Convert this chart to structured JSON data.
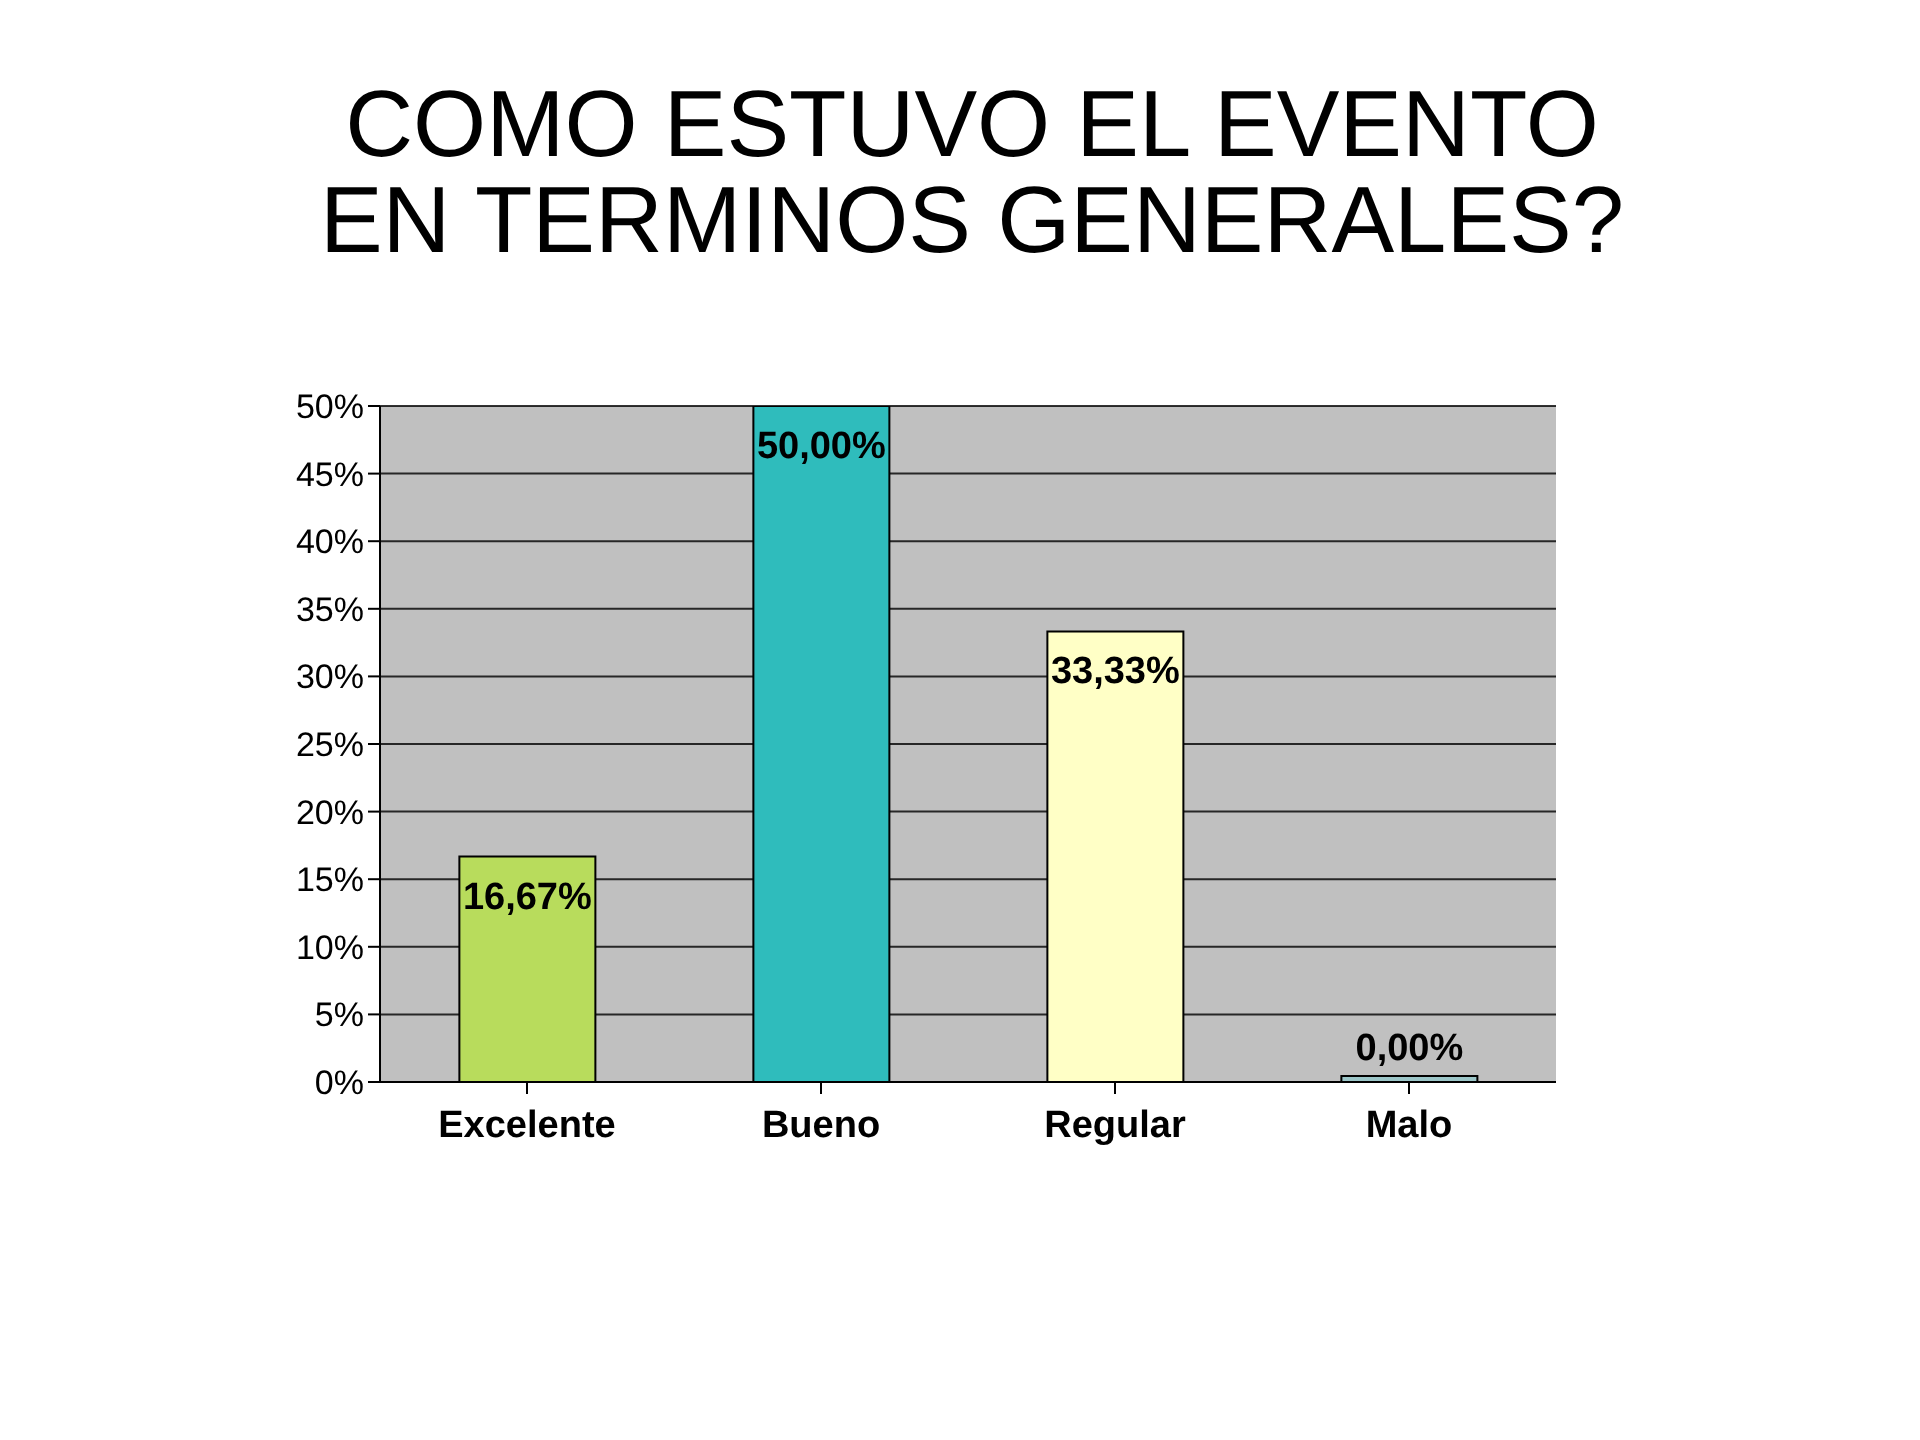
{
  "chart_data": {
    "type": "bar",
    "title": "COMO ESTUVO EL EVENTO\nEN TERMINOS GENERALES?",
    "categories": [
      "Excelente",
      "Bueno",
      "Regular",
      "Malo"
    ],
    "values": [
      16.67,
      50.0,
      33.33,
      0.0
    ],
    "colors": [
      "#b8dc5c",
      "#2fbcbc",
      "#ffffc6",
      "#9cc6c8"
    ],
    "value_labels": [
      "16,67%",
      "50,00%",
      "33,33%",
      "0,00%"
    ],
    "ylim": [
      0,
      50
    ],
    "yticks": [
      {
        "value": 0,
        "label": "0%"
      },
      {
        "value": 5,
        "label": "5%"
      },
      {
        "value": 10,
        "label": "10%"
      },
      {
        "value": 15,
        "label": "15%"
      },
      {
        "value": 20,
        "label": "20%"
      },
      {
        "value": 25,
        "label": "25%"
      },
      {
        "value": 30,
        "label": "30%"
      },
      {
        "value": 35,
        "label": "35%"
      },
      {
        "value": 40,
        "label": "40%"
      },
      {
        "value": 45,
        "label": "45%"
      },
      {
        "value": 50,
        "label": "50%"
      }
    ],
    "grid": "y"
  }
}
